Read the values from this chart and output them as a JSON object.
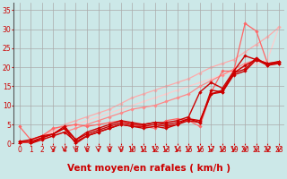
{
  "background_color": "#cce8e8",
  "grid_color": "#aaaaaa",
  "xlabel": "Vent moyen/en rafales ( km/h )",
  "xlabel_color": "#cc0000",
  "xlabel_fontsize": 7.5,
  "tick_color": "#cc0000",
  "tick_fontsize": 5.5,
  "xlim": [
    -0.5,
    23.5
  ],
  "ylim": [
    0,
    37
  ],
  "xticks": [
    0,
    1,
    2,
    3,
    4,
    5,
    6,
    7,
    8,
    9,
    10,
    11,
    12,
    13,
    14,
    15,
    16,
    17,
    18,
    19,
    20,
    21,
    22,
    23
  ],
  "yticks": [
    0,
    5,
    10,
    15,
    20,
    25,
    30,
    35
  ],
  "arrow_color": "#cc0000",
  "lines": [
    {
      "x": [
        0,
        1,
        2,
        3,
        4,
        5,
        6,
        7,
        8,
        9,
        10,
        11,
        12,
        13,
        14,
        15,
        16,
        17,
        18,
        19,
        20,
        21,
        22,
        23
      ],
      "y": [
        0,
        1,
        2,
        3,
        4,
        5,
        6,
        7,
        8,
        9,
        10,
        11,
        12,
        13,
        14,
        15,
        16,
        17,
        18,
        19,
        20,
        21,
        22,
        30.5
      ],
      "color": "#ffcccc",
      "lw": 0.9,
      "marker": "D",
      "ms": 1.8,
      "zorder": 1
    },
    {
      "x": [
        0,
        1,
        2,
        3,
        4,
        5,
        6,
        7,
        8,
        9,
        10,
        11,
        12,
        13,
        14,
        15,
        16,
        17,
        18,
        19,
        20,
        21,
        22,
        23
      ],
      "y": [
        0,
        1,
        2,
        3.5,
        5,
        6,
        7,
        8,
        9,
        10.5,
        12,
        13,
        14,
        15,
        16,
        17,
        18.5,
        20,
        21,
        22,
        24,
        26,
        28,
        30.5
      ],
      "color": "#ffaaaa",
      "lw": 0.9,
      "marker": "D",
      "ms": 1.8,
      "zorder": 1
    },
    {
      "x": [
        0,
        1,
        2,
        3,
        4,
        5,
        6,
        7,
        8,
        9,
        10,
        11,
        12,
        13,
        14,
        15,
        16,
        17,
        18,
        19,
        20,
        21,
        22,
        23
      ],
      "y": [
        0,
        0.5,
        1,
        2,
        3,
        4,
        5,
        6,
        7,
        8,
        9,
        9.5,
        10,
        11,
        12,
        13,
        15,
        16.5,
        18,
        19.5,
        21,
        22,
        20.5,
        21
      ],
      "color": "#ff8888",
      "lw": 0.9,
      "marker": "D",
      "ms": 1.8,
      "zorder": 2
    },
    {
      "x": [
        0,
        1,
        2,
        3,
        4,
        5,
        6,
        7,
        8,
        9,
        10,
        11,
        12,
        13,
        14,
        15,
        16,
        17,
        18,
        19,
        20,
        21,
        22,
        23
      ],
      "y": [
        4.5,
        1,
        2,
        4,
        4.5,
        5,
        4.5,
        5,
        5.5,
        6,
        5,
        4.5,
        4,
        6,
        6.5,
        6,
        4.5,
        13.5,
        19,
        19,
        31.5,
        29.5,
        21,
        21.5
      ],
      "color": "#ff6666",
      "lw": 0.9,
      "marker": "D",
      "ms": 1.8,
      "zorder": 2
    },
    {
      "x": [
        0,
        1,
        2,
        3,
        4,
        5,
        6,
        7,
        8,
        9,
        10,
        11,
        12,
        13,
        14,
        15,
        16,
        17,
        18,
        19,
        20,
        21,
        22,
        23
      ],
      "y": [
        0.5,
        0.5,
        1.5,
        2.5,
        4,
        1,
        2.5,
        3.5,
        4.5,
        5.5,
        5,
        5,
        5.5,
        5,
        5.5,
        6.5,
        6,
        13,
        14,
        18.5,
        19.5,
        22.5,
        20.5,
        21
      ],
      "color": "#cc0000",
      "lw": 1.0,
      "marker": "D",
      "ms": 1.8,
      "zorder": 3
    },
    {
      "x": [
        0,
        1,
        2,
        3,
        4,
        5,
        6,
        7,
        8,
        9,
        10,
        11,
        12,
        13,
        14,
        15,
        16,
        17,
        18,
        19,
        20,
        21,
        22,
        23
      ],
      "y": [
        0,
        0,
        1,
        2,
        3,
        0.5,
        2,
        3,
        4,
        5,
        4.5,
        4.5,
        5,
        4.5,
        5,
        6,
        5.5,
        13,
        13.5,
        18,
        19,
        22,
        21,
        21
      ],
      "color": "#cc0000",
      "lw": 1.0,
      "marker": "D",
      "ms": 1.8,
      "zorder": 3
    },
    {
      "x": [
        0,
        1,
        2,
        3,
        4,
        5,
        6,
        7,
        8,
        9,
        10,
        11,
        12,
        13,
        14,
        15,
        16,
        17,
        18,
        19,
        20,
        21,
        22,
        23
      ],
      "y": [
        0.5,
        1,
        2,
        2.5,
        4.5,
        1,
        3,
        4,
        5,
        6,
        5.5,
        5,
        5.5,
        5.5,
        6,
        7,
        13.5,
        16,
        14.5,
        19,
        23,
        22,
        20.5,
        21.5
      ],
      "color": "#cc0000",
      "lw": 1.0,
      "marker": "D",
      "ms": 1.8,
      "zorder": 3
    },
    {
      "x": [
        0,
        1,
        2,
        3,
        4,
        5,
        6,
        7,
        8,
        9,
        10,
        11,
        12,
        13,
        14,
        15,
        16,
        17,
        18,
        19,
        20,
        21,
        22,
        23
      ],
      "y": [
        0,
        0,
        1.5,
        2.5,
        4,
        0,
        2,
        3,
        4,
        5,
        4.5,
        4,
        4.5,
        4,
        5,
        6.5,
        5.5,
        14,
        13.5,
        18.5,
        20.5,
        22,
        21,
        21.5
      ],
      "color": "#cc0000",
      "lw": 1.0,
      "marker": "D",
      "ms": 1.8,
      "zorder": 3
    }
  ],
  "arrows_x": [
    3,
    4,
    5,
    6,
    7,
    8,
    9,
    10,
    11,
    12,
    13,
    14,
    15,
    16,
    17,
    18,
    19,
    20,
    21,
    22,
    23
  ]
}
